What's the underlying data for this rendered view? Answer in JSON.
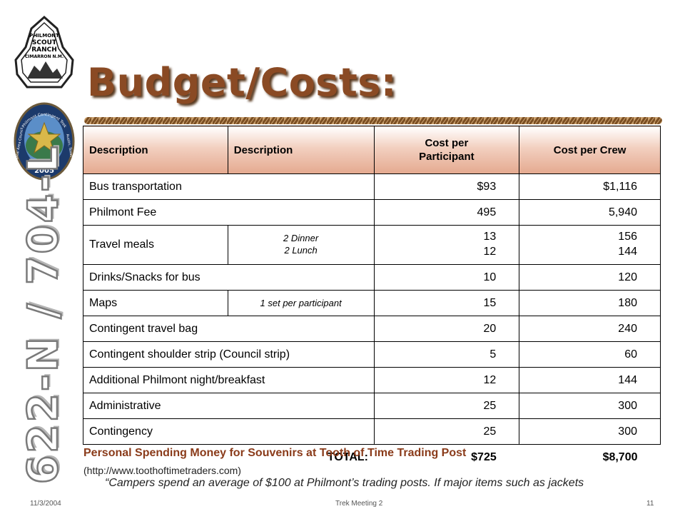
{
  "logos": {
    "arrowhead": {
      "lines": [
        "PHILMONT",
        "SCOUT",
        "RANCH",
        "CIMARRON N.M."
      ]
    },
    "patch": {
      "top_arc": "Philmont Contingent Trek",
      "left_arc": "Capital Area Council",
      "right_arc": "Austin, Texas",
      "year": "2005"
    }
  },
  "side_title": "622-N / 704-L",
  "title": "Budget/Costs:",
  "table": {
    "headers": [
      "Description",
      "Description",
      "Cost per\nParticipant",
      "Cost per Crew"
    ],
    "rows": [
      {
        "item": "Bus transportation",
        "note": "",
        "participant": "$93",
        "crew": "$1,116"
      },
      {
        "item": "Philmont Fee",
        "note": "",
        "participant": "495",
        "crew": "5,940"
      },
      {
        "item": "Travel meals",
        "note": "2 Dinner\n2 Lunch",
        "participant": "13\n12",
        "crew": "156\n144"
      },
      {
        "item": "Drinks/Snacks for bus",
        "note": "",
        "participant": "10",
        "crew": "120"
      },
      {
        "item": "Maps",
        "note": "1 set per participant",
        "participant": "15",
        "crew": "180"
      },
      {
        "item": "Contingent travel bag",
        "note": "",
        "participant": "20",
        "crew": "240"
      },
      {
        "item": "Contingent shoulder strip (Council strip)",
        "note": "",
        "participant": "5",
        "crew": "60"
      },
      {
        "item": "Additional Philmont night/breakfast",
        "note": "",
        "participant": "12",
        "crew": "144"
      },
      {
        "item": "Administrative",
        "note": "",
        "participant": "25",
        "crew": "300"
      },
      {
        "item": "Contingency",
        "note": "",
        "participant": "25",
        "crew": "300"
      }
    ],
    "total": {
      "label": "TOTAL:",
      "participant": "$725",
      "crew": "$8,700"
    }
  },
  "personal": {
    "heading": "Personal Spending Money for Souvenirs at Tooth of Time Trading Post",
    "url": "(http://www.toothoftimetraders.com)",
    "quote": "“Campers spend an average of $100 at Philmont’s trading posts.  If major items such as jackets"
  },
  "footer": {
    "date": "11/3/2004",
    "center": "Trek Meeting 2",
    "page": "11"
  },
  "colors": {
    "title": "#8a4a24",
    "header_fill": "#e4a98f",
    "personal_heading": "#8a3b1a"
  }
}
